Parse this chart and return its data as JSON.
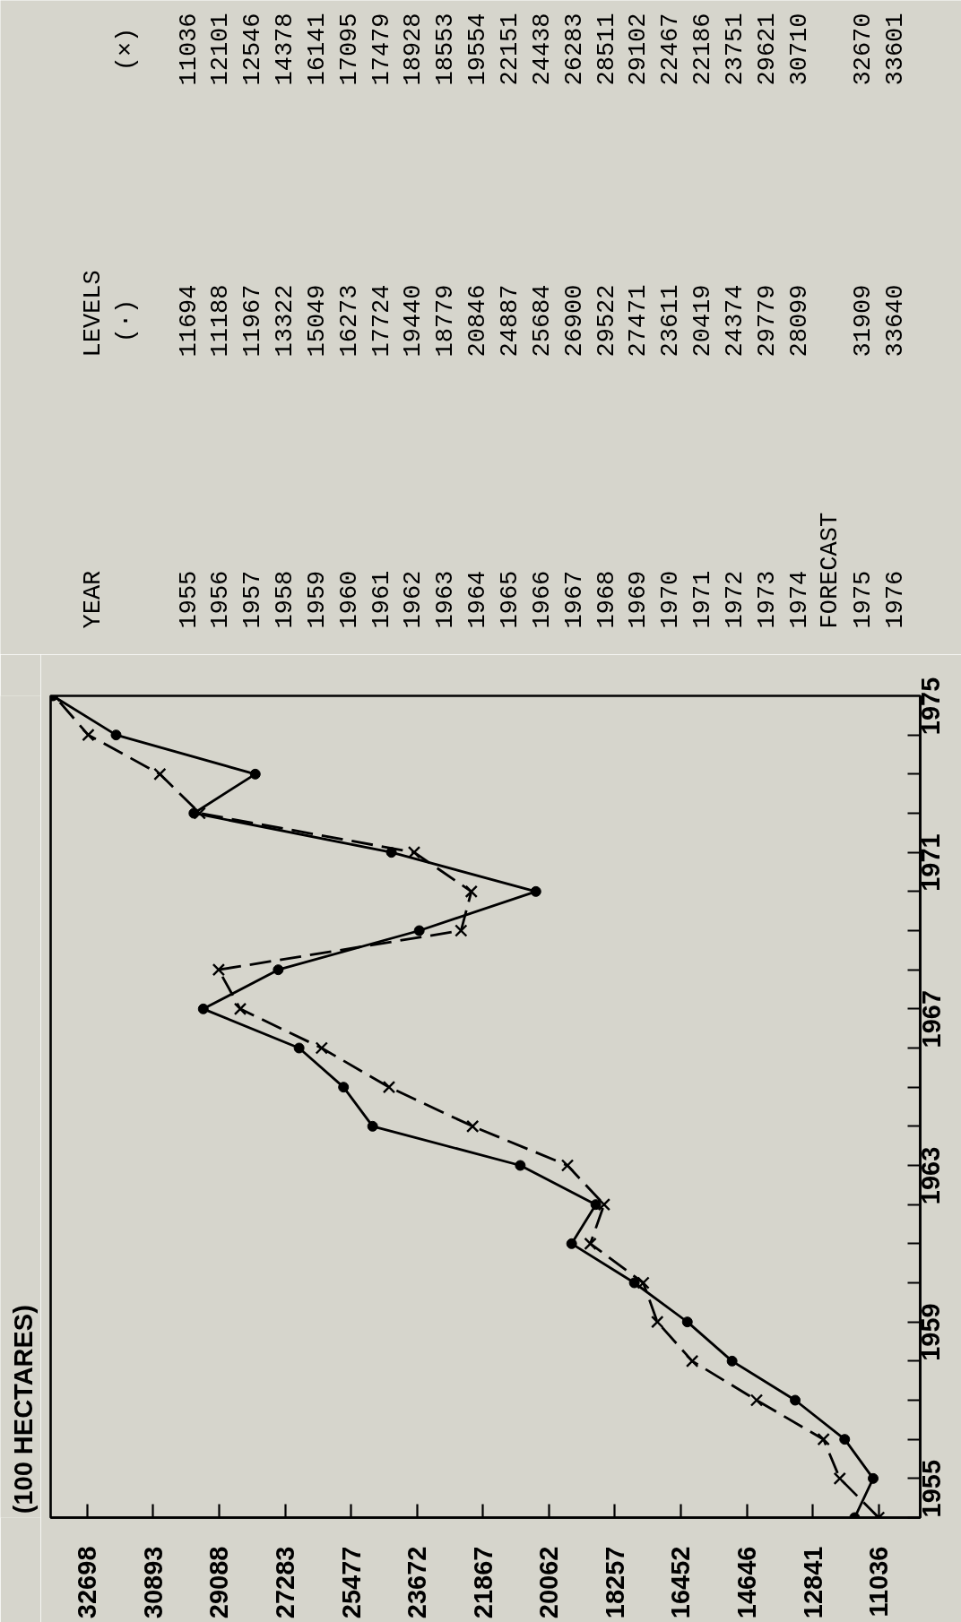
{
  "chart_data": [
    {
      "type": "heatmap",
      "annotations": [
        "YEAR",
        "LEVELS"
      ],
      "categories": [
        "1955",
        "1956",
        "1957",
        "1958",
        "1959",
        "1960",
        "1961",
        "1962",
        "1963",
        "1964",
        "1965",
        "1966",
        "1967",
        "1968",
        "1969",
        "1970",
        "1971",
        "1972",
        "1973",
        "1974",
        "FORECAST",
        "1975",
        "1976"
      ],
      "y_categories": [
        "(×)",
        "(·)"
      ],
      "cells": [
        [
          11036,
          12101,
          12546,
          14378,
          16141,
          17095,
          17479,
          18928,
          18553,
          19554,
          22151,
          24438,
          26283,
          28511,
          29102,
          22467,
          22186,
          23751,
          29621,
          30710,
          null,
          32670,
          33601
        ],
        [
          11694,
          11188,
          11967,
          13322,
          15049,
          16273,
          17724,
          19440,
          18779,
          20846,
          24887,
          25684,
          26900,
          29522,
          27471,
          23611,
          20419,
          24374,
          29779,
          28099,
          null,
          31909,
          33640
        ]
      ],
      "data_labels": true
    },
    {
      "type": "line",
      "orientation": "horizontal",
      "annotations": [
        "(100 HECTARES)"
      ],
      "x": [
        1955,
        1956,
        1957,
        1958,
        1959,
        1960,
        1961,
        1962,
        1963,
        1964,
        1965,
        1966,
        1967,
        1968,
        1969,
        1970,
        1971,
        1972,
        1973,
        1974,
        1975,
        1976
      ],
      "series": [
        {
          "color": "#000000",
          "marker": "circle",
          "line_style": "solid",
          "values": [
            11694,
            11188,
            11967,
            13322,
            15049,
            16273,
            17724,
            19440,
            18779,
            20846,
            24887,
            25684,
            26900,
            29522,
            27471,
            23611,
            20419,
            24374,
            29779,
            28099,
            31909,
            33640
          ]
        },
        {
          "color": "#000000",
          "marker": "cross",
          "line_style": "dashed",
          "values": [
            11036,
            12101,
            12546,
            14378,
            16141,
            17095,
            17479,
            18928,
            18553,
            19554,
            22151,
            24438,
            26283,
            28511,
            29102,
            22467,
            22186,
            23751,
            29621,
            30710,
            32670,
            33601
          ]
        }
      ],
      "xlim": [
        33700,
        9900
      ],
      "xticks": [
        11036,
        12841,
        14646,
        16452,
        18257,
        20062,
        21867,
        23672,
        25477,
        27283,
        29088,
        30893,
        32698
      ],
      "ylim": [
        1955,
        1976
      ],
      "yticks": [
        1955,
        {
          "value": 1956,
          "label": null
        },
        {
          "value": 1957,
          "label": null
        },
        {
          "value": 1958,
          "label": null
        },
        1959,
        {
          "value": 1960,
          "label": null
        },
        {
          "value": 1961,
          "label": null
        },
        {
          "value": 1962,
          "label": null
        },
        1963,
        {
          "value": 1964,
          "label": null
        },
        {
          "value": 1965,
          "label": null
        },
        {
          "value": 1966,
          "label": null
        },
        1967,
        {
          "value": 1968,
          "label": null
        },
        {
          "value": 1969,
          "label": null
        },
        {
          "value": 1970,
          "label": null
        },
        1971,
        {
          "value": 1972,
          "label": null
        },
        {
          "value": 1973,
          "label": null
        },
        {
          "value": 1974,
          "label": null
        },
        1975
      ],
      "grid": false
    }
  ]
}
